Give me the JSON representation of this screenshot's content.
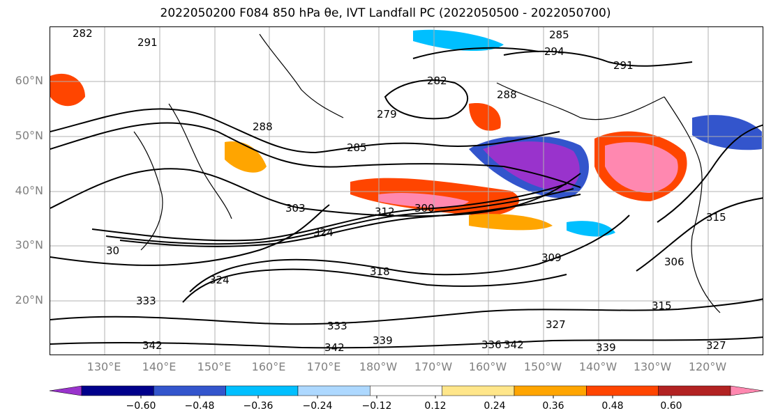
{
  "title": "2022050200 F084 850 hPa θe, IVT Landfall PC (2022050500 - 2022050700)",
  "map": {
    "lat_labels": [
      "60°N",
      "50°N",
      "40°N",
      "30°N",
      "20°N"
    ],
    "lon_labels": [
      "130°E",
      "140°E",
      "150°E",
      "160°E",
      "170°E",
      "180°W",
      "170°W",
      "160°W",
      "150°W",
      "140°W",
      "130°W",
      "120°W"
    ],
    "contour_labels": [
      "282",
      "291",
      "285",
      "294",
      "291",
      "282",
      "279",
      "288",
      "285",
      "288",
      "303",
      "300",
      "312",
      "30",
      "324",
      "318",
      "309",
      "306",
      "315",
      "333",
      "324",
      "333",
      "327",
      "342",
      "339",
      "342",
      "336",
      "339",
      "342",
      "315",
      "327"
    ]
  },
  "colorbar": {
    "tick_labels": [
      "−0.60",
      "−0.48",
      "−0.36",
      "−0.24",
      "−0.12",
      "0.12",
      "0.24",
      "0.36",
      "0.48",
      "0.60"
    ],
    "colors": [
      "#9933cc",
      "#00008b",
      "#3355cc",
      "#00bfff",
      "#add8ff",
      "#ffffff",
      "#ffe68a",
      "#ffa500",
      "#ff4500",
      "#b22222",
      "#ff88b0"
    ]
  }
}
